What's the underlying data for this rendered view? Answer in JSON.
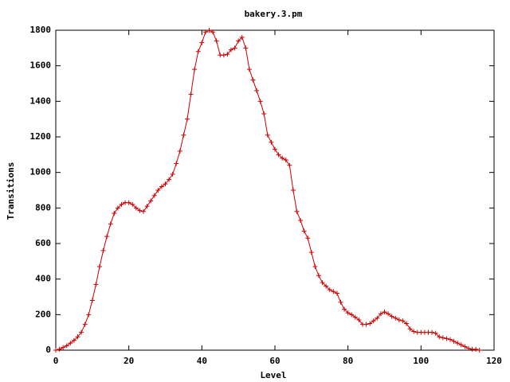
{
  "chart_data": {
    "type": "line",
    "title": "bakery.3.pm",
    "xlabel": "Level",
    "ylabel": "Transitions",
    "x": [
      0,
      1,
      2,
      3,
      4,
      5,
      6,
      7,
      8,
      9,
      10,
      11,
      12,
      13,
      14,
      15,
      16,
      17,
      18,
      19,
      20,
      21,
      22,
      23,
      24,
      25,
      26,
      27,
      28,
      29,
      30,
      31,
      32,
      33,
      34,
      35,
      36,
      37,
      38,
      39,
      40,
      41,
      42,
      43,
      44,
      45,
      46,
      47,
      48,
      49,
      50,
      51,
      52,
      53,
      54,
      55,
      56,
      57,
      58,
      59,
      60,
      61,
      62,
      63,
      64,
      65,
      66,
      67,
      68,
      69,
      70,
      71,
      72,
      73,
      74,
      75,
      76,
      77,
      78,
      79,
      80,
      81,
      82,
      83,
      84,
      85,
      86,
      87,
      88,
      89,
      90,
      91,
      92,
      93,
      94,
      95,
      96,
      97,
      98,
      99,
      100,
      101,
      102,
      103,
      104,
      105,
      106,
      107,
      108,
      109,
      110,
      111,
      112,
      113,
      114,
      115,
      116
    ],
    "series": [
      {
        "color": "#cc0000",
        "values": [
          0,
          5,
          15,
          25,
          40,
          55,
          75,
          100,
          145,
          200,
          280,
          370,
          470,
          560,
          640,
          710,
          770,
          800,
          820,
          830,
          830,
          820,
          800,
          785,
          780,
          810,
          840,
          870,
          900,
          920,
          935,
          960,
          990,
          1050,
          1120,
          1210,
          1300,
          1440,
          1580,
          1680,
          1730,
          1790,
          1800,
          1790,
          1740,
          1660,
          1660,
          1665,
          1690,
          1700,
          1740,
          1760,
          1700,
          1580,
          1520,
          1460,
          1400,
          1330,
          1210,
          1170,
          1130,
          1100,
          1080,
          1070,
          1040,
          900,
          780,
          730,
          670,
          630,
          550,
          470,
          420,
          380,
          360,
          340,
          330,
          320,
          270,
          230,
          210,
          200,
          185,
          170,
          145,
          145,
          150,
          165,
          180,
          205,
          215,
          205,
          190,
          180,
          170,
          165,
          150,
          120,
          105,
          100,
          100,
          100,
          100,
          100,
          95,
          75,
          70,
          65,
          60,
          50,
          40,
          30,
          20,
          10,
          5,
          5,
          0
        ]
      }
    ],
    "xlim": [
      0,
      120
    ],
    "ylim": [
      0,
      1800
    ],
    "xticks": [
      0,
      20,
      40,
      60,
      80,
      100,
      120
    ],
    "yticks": [
      0,
      200,
      400,
      600,
      800,
      1000,
      1200,
      1400,
      1600,
      1800
    ]
  }
}
